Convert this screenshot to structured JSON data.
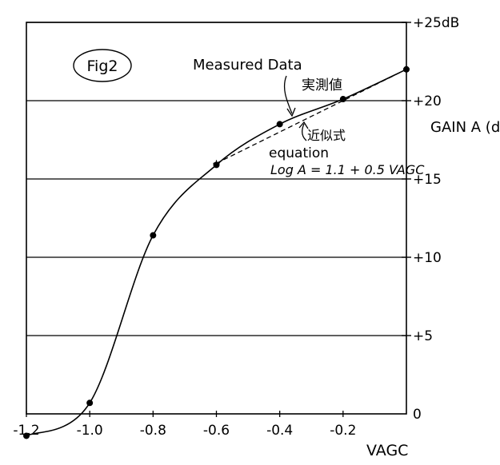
{
  "chart_data": {
    "type": "line",
    "title": "",
    "figure_label": "Fig2",
    "xlabel": "VAGC",
    "ylabel": "GAIN A (dB)",
    "xlim": [
      -1.2,
      0
    ],
    "ylim": [
      0,
      25
    ],
    "x_ticks": [
      {
        "value": -1.2,
        "label": "-1.2"
      },
      {
        "value": -1.0,
        "label": "-1.0"
      },
      {
        "value": -0.8,
        "label": "-0.8"
      },
      {
        "value": -0.6,
        "label": "-0.6"
      },
      {
        "value": -0.4,
        "label": "-0.4"
      },
      {
        "value": -0.2,
        "label": "-0.2"
      }
    ],
    "y_ticks": [
      {
        "value": 0,
        "label": "0"
      },
      {
        "value": 5,
        "label": "+5"
      },
      {
        "value": 10,
        "label": "+10"
      },
      {
        "value": 15,
        "label": "+15"
      },
      {
        "value": 20,
        "label": "+20"
      },
      {
        "value": 25,
        "label": "+25dB"
      }
    ],
    "grid": {
      "horizontal": true,
      "at": [
        5,
        10,
        15,
        20,
        25
      ]
    },
    "series": [
      {
        "name": "Measured Data 実測値",
        "style": "solid",
        "x": [
          -1.2,
          -1.0,
          -0.8,
          -0.6,
          -0.4,
          -0.2,
          0.0
        ],
        "y": [
          -1.4,
          0.7,
          11.4,
          15.9,
          18.5,
          20.1,
          22.0
        ]
      },
      {
        "name": "近似式 equation",
        "style": "dashed",
        "x": [
          -0.6,
          0.0
        ],
        "y": [
          16.0,
          22.0
        ]
      }
    ],
    "annotations": [
      {
        "text": "Measured Data",
        "points_to": "measured curve"
      },
      {
        "text": "実測値",
        "points_to": "measured curve"
      },
      {
        "text": "近似式",
        "points_to": "dashed line"
      },
      {
        "text": "equation"
      },
      {
        "text": "Log A = 1.1 + 0.5 VAGC"
      }
    ]
  }
}
